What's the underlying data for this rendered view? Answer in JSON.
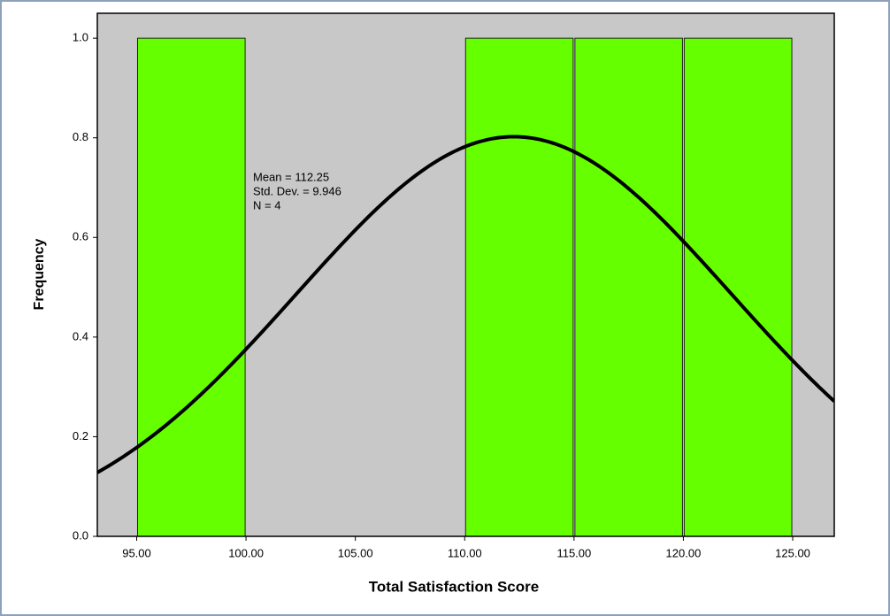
{
  "chart_data": {
    "type": "histogram",
    "x_label": "Total Satisfaction Score",
    "y_label": "Frequency",
    "bins": [
      95,
      100,
      105,
      110,
      115,
      120,
      125
    ],
    "values": [
      1,
      0,
      0,
      1,
      1,
      1
    ],
    "color": "#66ff00",
    "xlim": [
      93.2,
      126.9
    ],
    "ylim": [
      0,
      1.05
    ],
    "xticks": [
      {
        "value": 95,
        "label": "95.00"
      },
      {
        "value": 100,
        "label": "100.00"
      },
      {
        "value": 105,
        "label": "105.00"
      },
      {
        "value": 110,
        "label": "110.00"
      },
      {
        "value": 115,
        "label": "115.00"
      },
      {
        "value": 120,
        "label": "120.00"
      },
      {
        "value": 125,
        "label": "125.00"
      }
    ],
    "yticks": [
      {
        "value": 0,
        "label": "0.0"
      },
      0.2,
      0.4,
      0.6,
      0.8,
      {
        "value": 1,
        "label": "1.0"
      }
    ],
    "curve": {
      "mean": 112.25,
      "sd": 9.946,
      "n": 4
    },
    "annotations": [
      "Mean = 112.25",
      "Std. Dev. = 9.946",
      "N = 4"
    ]
  }
}
